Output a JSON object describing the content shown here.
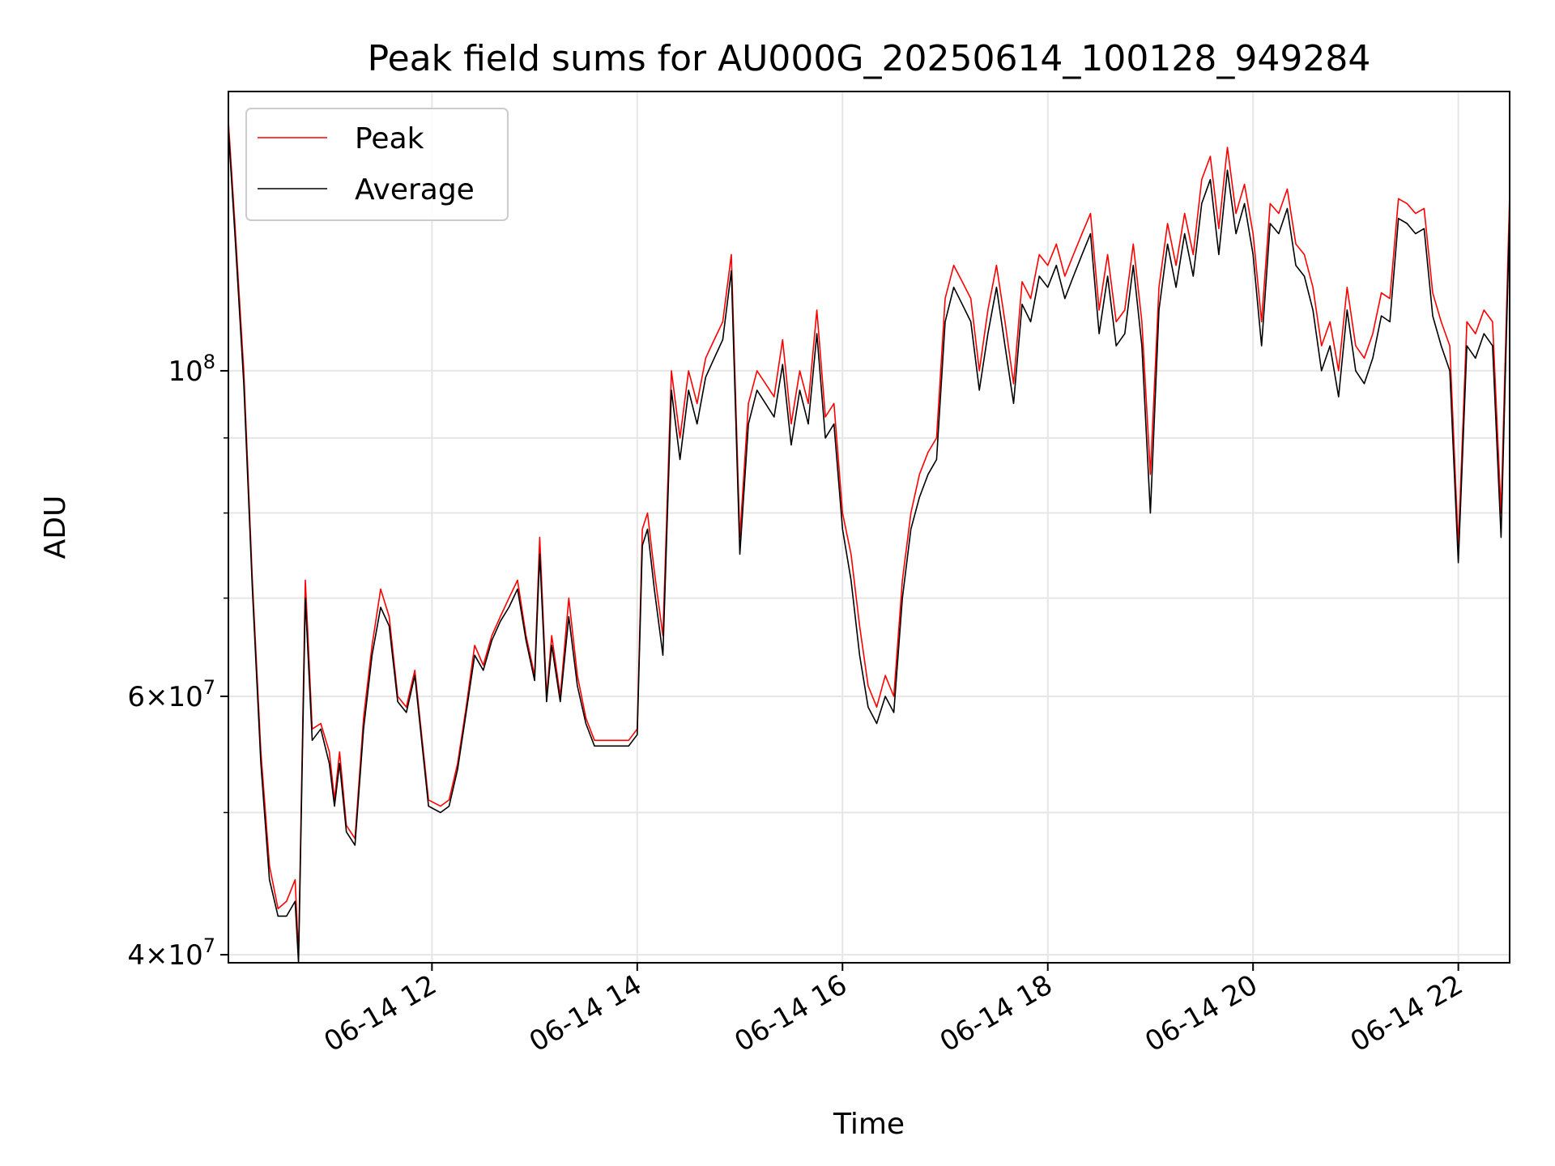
{
  "chart_data": {
    "type": "line",
    "title": "Peak field sums for AU000G_20250614_100128_949284",
    "xlabel": "Time",
    "ylabel": "ADU",
    "yscale": "log",
    "ylim": [
      39500000,
      155000000
    ],
    "xlim": [
      "2025-06-14 10:01",
      "2025-06-14 22:30"
    ],
    "x_ticks": [
      {
        "x": "2025-06-14 12:00",
        "label": "06-14 12"
      },
      {
        "x": "2025-06-14 14:00",
        "label": "06-14 14"
      },
      {
        "x": "2025-06-14 16:00",
        "label": "06-14 16"
      },
      {
        "x": "2025-06-14 18:00",
        "label": "06-14 18"
      },
      {
        "x": "2025-06-14 20:00",
        "label": "06-14 20"
      },
      {
        "x": "2025-06-14 22:00",
        "label": "06-14 22"
      }
    ],
    "y_major_ticks": [
      {
        "value": 40000000,
        "mant": "4",
        "exp": "7"
      },
      {
        "value": 60000000,
        "mant": "6",
        "exp": "7"
      },
      {
        "value": 100000000,
        "mant": "",
        "exp": "8"
      }
    ],
    "y_minor_ticks": [
      50000000,
      70000000,
      80000000,
      90000000
    ],
    "grid": true,
    "legend": {
      "placement": "upper-left"
    },
    "series": [
      {
        "name": "Peak",
        "color": "#ff0000",
        "x": [
          "2025-06-14 10:01",
          "2025-06-14 10:05",
          "2025-06-14 10:10",
          "2025-06-14 10:15",
          "2025-06-14 10:20",
          "2025-06-14 10:25",
          "2025-06-14 10:30",
          "2025-06-14 10:35",
          "2025-06-14 10:40",
          "2025-06-14 10:42",
          "2025-06-14 10:46",
          "2025-06-14 10:50",
          "2025-06-14 10:55",
          "2025-06-14 11:00",
          "2025-06-14 11:03",
          "2025-06-14 11:06",
          "2025-06-14 11:10",
          "2025-06-14 11:15",
          "2025-06-14 11:20",
          "2025-06-14 11:25",
          "2025-06-14 11:30",
          "2025-06-14 11:35",
          "2025-06-14 11:40",
          "2025-06-14 11:45",
          "2025-06-14 11:50",
          "2025-06-14 11:58",
          "2025-06-14 12:05",
          "2025-06-14 12:10",
          "2025-06-14 12:15",
          "2025-06-14 12:20",
          "2025-06-14 12:25",
          "2025-06-14 12:30",
          "2025-06-14 12:35",
          "2025-06-14 12:40",
          "2025-06-14 12:45",
          "2025-06-14 12:50",
          "2025-06-14 12:55",
          "2025-06-14 13:00",
          "2025-06-14 13:03",
          "2025-06-14 13:07",
          "2025-06-14 13:10",
          "2025-06-14 13:15",
          "2025-06-14 13:20",
          "2025-06-14 13:25",
          "2025-06-14 13:30",
          "2025-06-14 13:35",
          "2025-06-14 13:40",
          "2025-06-14 13:45",
          "2025-06-14 13:50",
          "2025-06-14 13:55",
          "2025-06-14 14:00",
          "2025-06-14 14:03",
          "2025-06-14 14:06",
          "2025-06-14 14:10",
          "2025-06-14 14:15",
          "2025-06-14 14:20",
          "2025-06-14 14:25",
          "2025-06-14 14:30",
          "2025-06-14 14:35",
          "2025-06-14 14:40",
          "2025-06-14 14:45",
          "2025-06-14 14:50",
          "2025-06-14 14:55",
          "2025-06-14 15:00",
          "2025-06-14 15:05",
          "2025-06-14 15:10",
          "2025-06-14 15:15",
          "2025-06-14 15:20",
          "2025-06-14 15:25",
          "2025-06-14 15:30",
          "2025-06-14 15:35",
          "2025-06-14 15:40",
          "2025-06-14 15:45",
          "2025-06-14 15:50",
          "2025-06-14 15:55",
          "2025-06-14 16:00",
          "2025-06-14 16:05",
          "2025-06-14 16:10",
          "2025-06-14 16:15",
          "2025-06-14 16:20",
          "2025-06-14 16:25",
          "2025-06-14 16:30",
          "2025-06-14 16:35",
          "2025-06-14 16:40",
          "2025-06-14 16:45",
          "2025-06-14 16:50",
          "2025-06-14 16:55",
          "2025-06-14 17:00",
          "2025-06-14 17:05",
          "2025-06-14 17:10",
          "2025-06-14 17:15",
          "2025-06-14 17:20",
          "2025-06-14 17:25",
          "2025-06-14 17:30",
          "2025-06-14 17:35",
          "2025-06-14 17:40",
          "2025-06-14 17:45",
          "2025-06-14 17:50",
          "2025-06-14 17:55",
          "2025-06-14 18:00",
          "2025-06-14 18:05",
          "2025-06-14 18:10",
          "2025-06-14 18:15",
          "2025-06-14 18:20",
          "2025-06-14 18:25",
          "2025-06-14 18:30",
          "2025-06-14 18:35",
          "2025-06-14 18:40",
          "2025-06-14 18:45",
          "2025-06-14 18:50",
          "2025-06-14 18:55",
          "2025-06-14 19:00",
          "2025-06-14 19:05",
          "2025-06-14 19:10",
          "2025-06-14 19:15",
          "2025-06-14 19:20",
          "2025-06-14 19:25",
          "2025-06-14 19:30",
          "2025-06-14 19:35",
          "2025-06-14 19:40",
          "2025-06-14 19:45",
          "2025-06-14 19:50",
          "2025-06-14 19:55",
          "2025-06-14 20:00",
          "2025-06-14 20:05",
          "2025-06-14 20:10",
          "2025-06-14 20:15",
          "2025-06-14 20:20",
          "2025-06-14 20:25",
          "2025-06-14 20:30",
          "2025-06-14 20:35",
          "2025-06-14 20:40",
          "2025-06-14 20:45",
          "2025-06-14 20:50",
          "2025-06-14 20:55",
          "2025-06-14 21:00",
          "2025-06-14 21:05",
          "2025-06-14 21:10",
          "2025-06-14 21:15",
          "2025-06-14 21:20",
          "2025-06-14 21:25",
          "2025-06-14 21:30",
          "2025-06-14 21:35",
          "2025-06-14 21:40",
          "2025-06-14 21:45",
          "2025-06-14 21:50",
          "2025-06-14 21:55",
          "2025-06-14 22:00",
          "2025-06-14 22:05",
          "2025-06-14 22:10",
          "2025-06-14 22:15",
          "2025-06-14 22:20",
          "2025-06-14 22:25",
          "2025-06-14 22:30"
        ],
        "y": [
          148000000,
          125000000,
          100000000,
          72000000,
          55000000,
          46000000,
          43000000,
          43500000,
          45000000,
          40000000,
          72000000,
          57000000,
          57500000,
          55000000,
          51000000,
          55000000,
          49000000,
          48000000,
          58000000,
          65000000,
          71000000,
          68000000,
          60000000,
          59000000,
          62500000,
          51000000,
          50500000,
          51000000,
          54000000,
          59000000,
          65000000,
          63000000,
          66000000,
          68000000,
          70000000,
          72000000,
          66000000,
          62000000,
          77000000,
          60000000,
          66000000,
          60000000,
          70000000,
          62000000,
          58000000,
          56000000,
          56000000,
          56000000,
          56000000,
          56000000,
          57000000,
          78000000,
          80000000,
          73000000,
          66000000,
          100000000,
          90000000,
          100000000,
          95000000,
          102000000,
          105000000,
          108000000,
          120000000,
          77000000,
          95000000,
          100000000,
          98000000,
          96000000,
          105000000,
          92000000,
          100000000,
          95000000,
          110000000,
          93000000,
          95000000,
          80000000,
          75000000,
          67000000,
          61000000,
          59000000,
          62000000,
          60000000,
          72000000,
          80000000,
          85000000,
          88000000,
          90000000,
          112000000,
          118000000,
          115000000,
          112000000,
          100000000,
          110000000,
          118000000,
          108000000,
          98000000,
          115000000,
          112000000,
          120000000,
          118000000,
          122000000,
          116000000,
          120000000,
          124000000,
          128000000,
          110000000,
          120000000,
          108000000,
          110000000,
          122000000,
          108000000,
          85000000,
          114000000,
          126000000,
          118000000,
          128000000,
          120000000,
          135000000,
          140000000,
          125000000,
          142000000,
          128000000,
          134000000,
          124000000,
          108000000,
          130000000,
          128000000,
          133000000,
          122000000,
          120000000,
          114000000,
          104000000,
          108000000,
          100000000,
          114000000,
          104000000,
          102000000,
          106000000,
          113000000,
          112000000,
          131000000,
          130000000,
          128000000,
          129000000,
          113000000,
          108000000,
          104000000,
          76000000,
          108000000,
          106000000,
          110000000,
          108000000,
          80000000,
          132000000
        ]
      },
      {
        "name": "Average",
        "color": "#000000",
        "x": [
          "2025-06-14 10:01",
          "2025-06-14 10:05",
          "2025-06-14 10:10",
          "2025-06-14 10:15",
          "2025-06-14 10:20",
          "2025-06-14 10:25",
          "2025-06-14 10:30",
          "2025-06-14 10:35",
          "2025-06-14 10:40",
          "2025-06-14 10:42",
          "2025-06-14 10:46",
          "2025-06-14 10:50",
          "2025-06-14 10:55",
          "2025-06-14 11:00",
          "2025-06-14 11:03",
          "2025-06-14 11:06",
          "2025-06-14 11:10",
          "2025-06-14 11:15",
          "2025-06-14 11:20",
          "2025-06-14 11:25",
          "2025-06-14 11:30",
          "2025-06-14 11:35",
          "2025-06-14 11:40",
          "2025-06-14 11:45",
          "2025-06-14 11:50",
          "2025-06-14 11:58",
          "2025-06-14 12:05",
          "2025-06-14 12:10",
          "2025-06-14 12:15",
          "2025-06-14 12:20",
          "2025-06-14 12:25",
          "2025-06-14 12:30",
          "2025-06-14 12:35",
          "2025-06-14 12:40",
          "2025-06-14 12:45",
          "2025-06-14 12:50",
          "2025-06-14 12:55",
          "2025-06-14 13:00",
          "2025-06-14 13:03",
          "2025-06-14 13:07",
          "2025-06-14 13:10",
          "2025-06-14 13:15",
          "2025-06-14 13:20",
          "2025-06-14 13:25",
          "2025-06-14 13:30",
          "2025-06-14 13:35",
          "2025-06-14 13:40",
          "2025-06-14 13:45",
          "2025-06-14 13:50",
          "2025-06-14 13:55",
          "2025-06-14 14:00",
          "2025-06-14 14:03",
          "2025-06-14 14:06",
          "2025-06-14 14:10",
          "2025-06-14 14:15",
          "2025-06-14 14:20",
          "2025-06-14 14:25",
          "2025-06-14 14:30",
          "2025-06-14 14:35",
          "2025-06-14 14:40",
          "2025-06-14 14:45",
          "2025-06-14 14:50",
          "2025-06-14 14:55",
          "2025-06-14 15:00",
          "2025-06-14 15:05",
          "2025-06-14 15:10",
          "2025-06-14 15:15",
          "2025-06-14 15:20",
          "2025-06-14 15:25",
          "2025-06-14 15:30",
          "2025-06-14 15:35",
          "2025-06-14 15:40",
          "2025-06-14 15:45",
          "2025-06-14 15:50",
          "2025-06-14 15:55",
          "2025-06-14 16:00",
          "2025-06-14 16:05",
          "2025-06-14 16:10",
          "2025-06-14 16:15",
          "2025-06-14 16:20",
          "2025-06-14 16:25",
          "2025-06-14 16:30",
          "2025-06-14 16:35",
          "2025-06-14 16:40",
          "2025-06-14 16:45",
          "2025-06-14 16:50",
          "2025-06-14 16:55",
          "2025-06-14 17:00",
          "2025-06-14 17:05",
          "2025-06-14 17:10",
          "2025-06-14 17:15",
          "2025-06-14 17:20",
          "2025-06-14 17:25",
          "2025-06-14 17:30",
          "2025-06-14 17:35",
          "2025-06-14 17:40",
          "2025-06-14 17:45",
          "2025-06-14 17:50",
          "2025-06-14 17:55",
          "2025-06-14 18:00",
          "2025-06-14 18:05",
          "2025-06-14 18:10",
          "2025-06-14 18:15",
          "2025-06-14 18:20",
          "2025-06-14 18:25",
          "2025-06-14 18:30",
          "2025-06-14 18:35",
          "2025-06-14 18:40",
          "2025-06-14 18:45",
          "2025-06-14 18:50",
          "2025-06-14 18:55",
          "2025-06-14 19:00",
          "2025-06-14 19:05",
          "2025-06-14 19:10",
          "2025-06-14 19:15",
          "2025-06-14 19:20",
          "2025-06-14 19:25",
          "2025-06-14 19:30",
          "2025-06-14 19:35",
          "2025-06-14 19:40",
          "2025-06-14 19:45",
          "2025-06-14 19:50",
          "2025-06-14 19:55",
          "2025-06-14 20:00",
          "2025-06-14 20:05",
          "2025-06-14 20:10",
          "2025-06-14 20:15",
          "2025-06-14 20:20",
          "2025-06-14 20:25",
          "2025-06-14 20:30",
          "2025-06-14 20:35",
          "2025-06-14 20:40",
          "2025-06-14 20:45",
          "2025-06-14 20:50",
          "2025-06-14 20:55",
          "2025-06-14 21:00",
          "2025-06-14 21:05",
          "2025-06-14 21:10",
          "2025-06-14 21:15",
          "2025-06-14 21:20",
          "2025-06-14 21:25",
          "2025-06-14 21:30",
          "2025-06-14 21:35",
          "2025-06-14 21:40",
          "2025-06-14 21:45",
          "2025-06-14 21:50",
          "2025-06-14 21:55",
          "2025-06-14 22:00",
          "2025-06-14 22:05",
          "2025-06-14 22:10",
          "2025-06-14 22:15",
          "2025-06-14 22:20",
          "2025-06-14 22:25",
          "2025-06-14 22:30"
        ],
        "y": [
          146000000,
          123000000,
          98000000,
          71000000,
          54000000,
          45000000,
          42500000,
          42500000,
          43500000,
          39500000,
          70000000,
          56000000,
          57000000,
          54000000,
          50500000,
          54000000,
          48500000,
          47500000,
          57000000,
          64000000,
          69000000,
          67000000,
          59500000,
          58500000,
          62000000,
          50500000,
          50000000,
          50500000,
          53500000,
          58500000,
          64000000,
          62500000,
          65500000,
          67500000,
          69000000,
          71000000,
          65500000,
          61500000,
          75000000,
          59500000,
          65000000,
          59500000,
          68000000,
          61000000,
          57500000,
          55500000,
          55500000,
          55500000,
          55500000,
          55500000,
          56500000,
          76000000,
          78000000,
          71000000,
          64000000,
          97000000,
          87000000,
          97000000,
          92000000,
          99000000,
          102000000,
          105000000,
          117000000,
          75000000,
          92000000,
          97000000,
          95000000,
          93000000,
          101000000,
          89000000,
          97000000,
          92000000,
          106000000,
          90000000,
          92000000,
          78000000,
          72000000,
          64000000,
          59000000,
          57500000,
          60000000,
          58500000,
          70000000,
          78000000,
          82000000,
          85000000,
          87000000,
          108000000,
          114000000,
          111000000,
          108000000,
          97000000,
          106000000,
          114000000,
          104000000,
          95000000,
          111000000,
          108000000,
          116000000,
          114000000,
          118000000,
          112000000,
          116000000,
          120000000,
          124000000,
          106000000,
          116000000,
          104000000,
          106000000,
          118000000,
          104000000,
          80000000,
          110000000,
          122000000,
          114000000,
          124000000,
          116000000,
          130000000,
          135000000,
          120000000,
          137000000,
          124000000,
          130000000,
          120000000,
          104000000,
          126000000,
          124000000,
          129000000,
          118000000,
          116000000,
          110000000,
          100000000,
          104000000,
          96000000,
          110000000,
          100000000,
          98000000,
          102000000,
          109000000,
          108000000,
          127000000,
          126000000,
          124000000,
          125000000,
          109000000,
          104000000,
          100000000,
          74000000,
          104000000,
          102000000,
          106000000,
          104000000,
          77000000,
          128000000
        ]
      }
    ]
  }
}
